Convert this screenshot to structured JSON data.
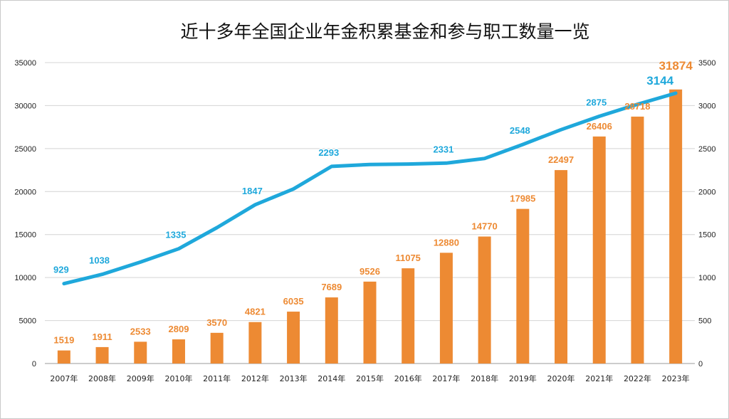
{
  "chart_data": {
    "type": "bar",
    "title": "近十多年全国企业年金积累基金和参与职工数量一览",
    "categories": [
      "2007年",
      "2008年",
      "2009年",
      "2010年",
      "2011年",
      "2012年",
      "2013年",
      "2014年",
      "2015年",
      "2016年",
      "2017年",
      "2018年",
      "2019年",
      "2020年",
      "2021年",
      "2022年",
      "2023年"
    ],
    "series": [
      {
        "name": "企业年金积累基金",
        "type": "bar",
        "axis": "left",
        "color": "#ED8A33",
        "values": [
          1519,
          1911,
          2533,
          2809,
          3570,
          4821,
          6035,
          7689,
          9526,
          11075,
          12880,
          14770,
          17985,
          22497,
          26406,
          28718,
          31874
        ]
      },
      {
        "name": "参与职工数量",
        "type": "line",
        "axis": "right",
        "color": "#1FA8DB",
        "values": [
          929,
          1038,
          1180,
          1335,
          1580,
          1847,
          2030,
          2293,
          2315,
          2320,
          2331,
          2385,
          2548,
          2720,
          2875,
          3015,
          3144
        ],
        "labeled": [
          true,
          true,
          false,
          true,
          false,
          true,
          false,
          true,
          false,
          false,
          true,
          false,
          true,
          false,
          true,
          false,
          true
        ]
      }
    ],
    "y_left": {
      "min": 0,
      "max": 35000,
      "ticks": [
        0,
        5000,
        10000,
        15000,
        20000,
        25000,
        30000,
        35000
      ]
    },
    "y_right": {
      "min": 0,
      "max": 3500,
      "ticks": [
        0,
        500,
        1000,
        1500,
        2000,
        2500,
        3000,
        3500
      ]
    },
    "grid": true,
    "legend": "none"
  }
}
